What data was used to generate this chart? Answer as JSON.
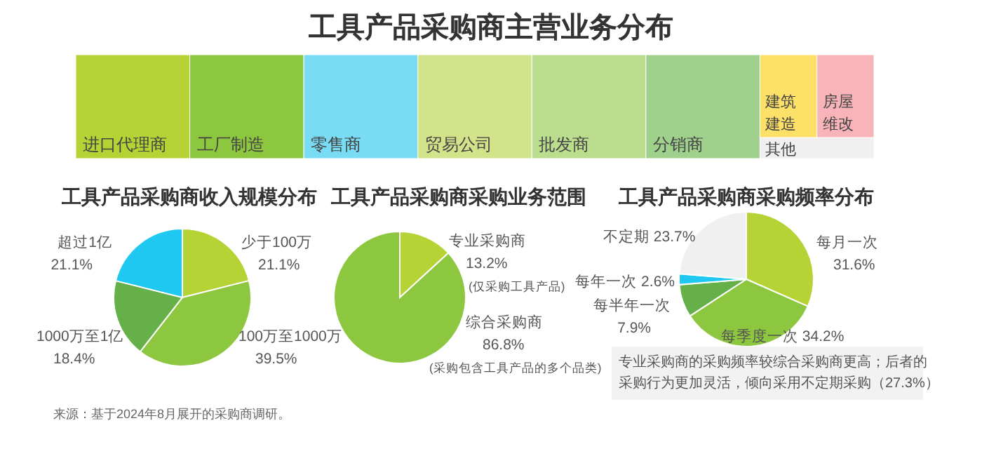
{
  "chart_data": [
    {
      "type": "other",
      "title": "工具产品采购商主营业务分布",
      "categories": [
        "进口代理商",
        "工厂制造",
        "零售商",
        "贸易公司",
        "批发商",
        "分销商",
        "其他",
        "建筑建造",
        "房屋维改"
      ],
      "colors": [
        "#b5d334",
        "#8dc63f",
        "#79dcf5",
        "#d2e38a",
        "#badd8e",
        "#9fd18c",
        "#f0f0f0",
        "#fde068",
        "#f8b4b8"
      ],
      "annotations": [
        "来源：基于2024年8月展开的采购商调研。"
      ]
    },
    {
      "type": "pie",
      "title": "工具产品采购商收入规模分布",
      "categories": [
        "少于100万",
        "100万至1000万",
        "1000万至1亿",
        "超过1亿"
      ],
      "values": [
        21.1,
        39.5,
        18.4,
        21.1
      ],
      "value_labels": [
        "21.1%",
        "39.5%",
        "18.4%",
        "21.1%"
      ],
      "colors": [
        "#b5d334",
        "#8dc63f",
        "#66b04a",
        "#1ec8f0"
      ]
    },
    {
      "type": "pie",
      "title": "工具产品采购商采购业务范围",
      "categories": [
        "专业采购商",
        "综合采购商"
      ],
      "values": [
        13.2,
        86.8
      ],
      "value_labels": [
        "13.2%",
        "86.8%"
      ],
      "colors": [
        "#b5d334",
        "#8dc63f"
      ],
      "annotations": [
        "(仅采购工具产品)",
        "(采购包含工具产品的多个品类)"
      ]
    },
    {
      "type": "pie",
      "title": "工具产品采购商采购频率分布",
      "categories": [
        "每月一次",
        "每季度一次",
        "每半年一次",
        "每年一次",
        "不定期"
      ],
      "values": [
        31.6,
        34.2,
        7.9,
        2.6,
        23.7
      ],
      "value_labels": [
        "31.6%",
        "34.2%",
        "7.9%",
        "2.6%",
        "23.7%"
      ],
      "colors": [
        "#b5d334",
        "#8dc63f",
        "#66b04a",
        "#1ec8f0",
        "#f0f0f0"
      ],
      "annotations": [
        "专业采购商的采购频率较综合采购商更高；后者的",
        "采购行为更加灵活，倾向采用不定期采购（27.3%）"
      ]
    }
  ]
}
